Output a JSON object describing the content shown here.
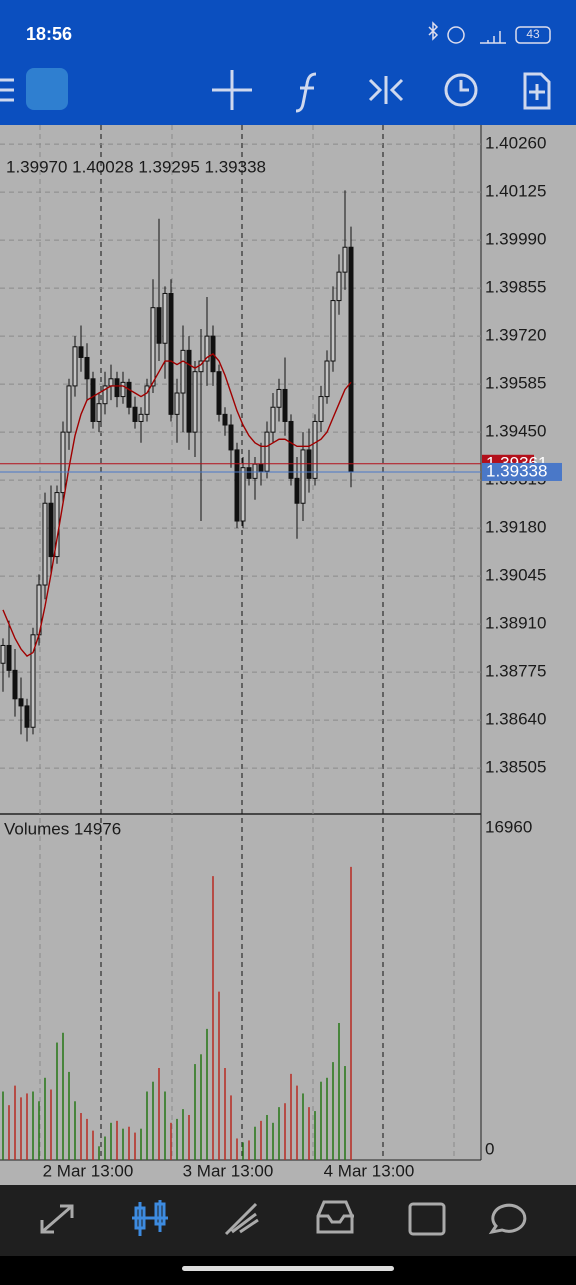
{
  "status_bar": {
    "time": "18:56",
    "battery": "43"
  },
  "chart_data": {
    "type": "candlestick",
    "ohlc_label": "1.39970 1.40028 1.39295 1.39338",
    "open": [
      1.388,
      1.3885,
      1.3878,
      1.387,
      1.3868,
      1.3862,
      1.3888,
      1.3902,
      1.3925,
      1.391,
      1.3928,
      1.3945,
      1.3958,
      1.3969,
      1.3966,
      1.396,
      1.3948,
      1.3953,
      1.3958,
      1.396,
      1.3955,
      1.3959,
      1.3952,
      1.3948,
      1.395,
      1.3958,
      1.398,
      1.397,
      1.3984,
      1.395,
      1.3956,
      1.3968,
      1.3945,
      1.3962,
      1.3965,
      1.3972,
      1.3962,
      1.395,
      1.3947,
      1.394,
      1.392,
      1.3935,
      1.3932,
      1.3936,
      1.3934,
      1.3945,
      1.3952,
      1.3957,
      1.3948,
      1.3932,
      1.3925,
      1.394,
      1.3932,
      1.3948,
      1.3955,
      1.3965,
      1.3982,
      1.399,
      1.3997
    ],
    "high": [
      1.3887,
      1.3892,
      1.3884,
      1.3876,
      1.387,
      1.389,
      1.3905,
      1.3928,
      1.393,
      1.393,
      1.3948,
      1.396,
      1.3972,
      1.3975,
      1.397,
      1.3962,
      1.3956,
      1.3962,
      1.3964,
      1.3962,
      1.3962,
      1.396,
      1.3955,
      1.3952,
      1.396,
      1.3988,
      1.4005,
      1.3986,
      1.3988,
      1.396,
      1.3975,
      1.3972,
      1.3965,
      1.3974,
      1.3983,
      1.3975,
      1.3964,
      1.3952,
      1.395,
      1.3942,
      1.3938,
      1.394,
      1.3938,
      1.3942,
      1.3948,
      1.3956,
      1.396,
      1.3966,
      1.395,
      1.3938,
      1.3945,
      1.3946,
      1.395,
      1.3958,
      1.3968,
      1.3986,
      1.3995,
      1.4013,
      1.40028
    ],
    "low": [
      1.3872,
      1.3876,
      1.3865,
      1.386,
      1.3858,
      1.386,
      1.3885,
      1.3898,
      1.3905,
      1.3908,
      1.3925,
      1.394,
      1.3955,
      1.3962,
      1.3954,
      1.3946,
      1.3945,
      1.395,
      1.3954,
      1.3952,
      1.3953,
      1.395,
      1.3946,
      1.3942,
      1.3948,
      1.3956,
      1.3965,
      1.396,
      1.3948,
      1.3942,
      1.3945,
      1.394,
      1.3938,
      1.392,
      1.3958,
      1.3958,
      1.3948,
      1.3944,
      1.3935,
      1.3918,
      1.3918,
      1.393,
      1.3926,
      1.393,
      1.3932,
      1.3942,
      1.3948,
      1.3944,
      1.393,
      1.3915,
      1.392,
      1.3928,
      1.393,
      1.3945,
      1.3953,
      1.3962,
      1.3978,
      1.3985,
      1.39295
    ],
    "close": [
      1.3885,
      1.3878,
      1.387,
      1.3868,
      1.3862,
      1.3888,
      1.3902,
      1.3925,
      1.391,
      1.3928,
      1.3945,
      1.3958,
      1.3969,
      1.3966,
      1.396,
      1.3948,
      1.3953,
      1.3958,
      1.396,
      1.3955,
      1.3959,
      1.3952,
      1.3948,
      1.395,
      1.3958,
      1.398,
      1.397,
      1.3984,
      1.395,
      1.3956,
      1.3968,
      1.3945,
      1.3962,
      1.3965,
      1.3972,
      1.3962,
      1.395,
      1.3947,
      1.394,
      1.392,
      1.3935,
      1.3932,
      1.3936,
      1.3934,
      1.3945,
      1.3952,
      1.3957,
      1.3948,
      1.3932,
      1.3925,
      1.394,
      1.3932,
      1.3948,
      1.3955,
      1.3965,
      1.3982,
      1.399,
      1.3997,
      1.39338
    ],
    "ma": [
      1.3895,
      1.3891,
      1.3887,
      1.3884,
      1.3882,
      1.3883,
      1.3888,
      1.3896,
      1.3905,
      1.3915,
      1.3925,
      1.3935,
      1.3944,
      1.395,
      1.3954,
      1.3955,
      1.3956,
      1.3957,
      1.3958,
      1.3958,
      1.3958,
      1.3957,
      1.3956,
      1.3955,
      1.3956,
      1.3959,
      1.3962,
      1.3965,
      1.3965,
      1.3964,
      1.3965,
      1.3964,
      1.3963,
      1.3964,
      1.3966,
      1.3967,
      1.3965,
      1.3961,
      1.3956,
      1.3951,
      1.3947,
      1.3944,
      1.3942,
      1.3941,
      1.3941,
      1.3942,
      1.3943,
      1.3943,
      1.3942,
      1.3941,
      1.3941,
      1.3941,
      1.3942,
      1.3943,
      1.3945,
      1.3949,
      1.3953,
      1.3957,
      1.3959
    ],
    "ylim": [
      1.38376,
      1.40311
    ],
    "yticks": [
      {
        "value": 1.4026,
        "label": "1.40260"
      },
      {
        "value": 1.40125,
        "label": "1.40125"
      },
      {
        "value": 1.3999,
        "label": "1.39990"
      },
      {
        "value": 1.39855,
        "label": "1.39855"
      },
      {
        "value": 1.3972,
        "label": "1.39720"
      },
      {
        "value": 1.39585,
        "label": "1.39585"
      },
      {
        "value": 1.3945,
        "label": "1.39450"
      },
      {
        "value": 1.39315,
        "label": "1.39315"
      },
      {
        "value": 1.3918,
        "label": "1.39180"
      },
      {
        "value": 1.39045,
        "label": "1.39045"
      },
      {
        "value": 1.3891,
        "label": "1.38910"
      },
      {
        "value": 1.38775,
        "label": "1.38775"
      },
      {
        "value": 1.3864,
        "label": "1.38640"
      },
      {
        "value": 1.38505,
        "label": "1.38505"
      }
    ],
    "bid": {
      "value": 1.39361,
      "label": "1.39361"
    },
    "last": {
      "value": 1.39338,
      "label": "1.39338"
    },
    "volume_label": "Volumes 14976",
    "volumes": [
      3500,
      2800,
      3800,
      3200,
      3400,
      3500,
      3000,
      4200,
      3600,
      6000,
      6500,
      4500,
      3000,
      2400,
      2100,
      1500,
      700,
      1200,
      1900,
      2000,
      1600,
      1700,
      1400,
      1600,
      3500,
      4000,
      4700,
      3500,
      1900,
      2100,
      2600,
      2300,
      4900,
      5400,
      6700,
      14500,
      8600,
      4700,
      3300,
      1100,
      900,
      1000,
      1700,
      2000,
      2300,
      1900,
      2700,
      2900,
      4400,
      3800,
      3400,
      2700,
      2500,
      4000,
      4200,
      5000,
      7000,
      4800,
      14976
    ],
    "volume_ylim": [
      0,
      16960
    ],
    "volume_yticks": [
      16960,
      0
    ],
    "x_labels": [
      "2 Mar 13:00",
      "3 Mar 13:00",
      "4 Mar 13:00"
    ]
  }
}
